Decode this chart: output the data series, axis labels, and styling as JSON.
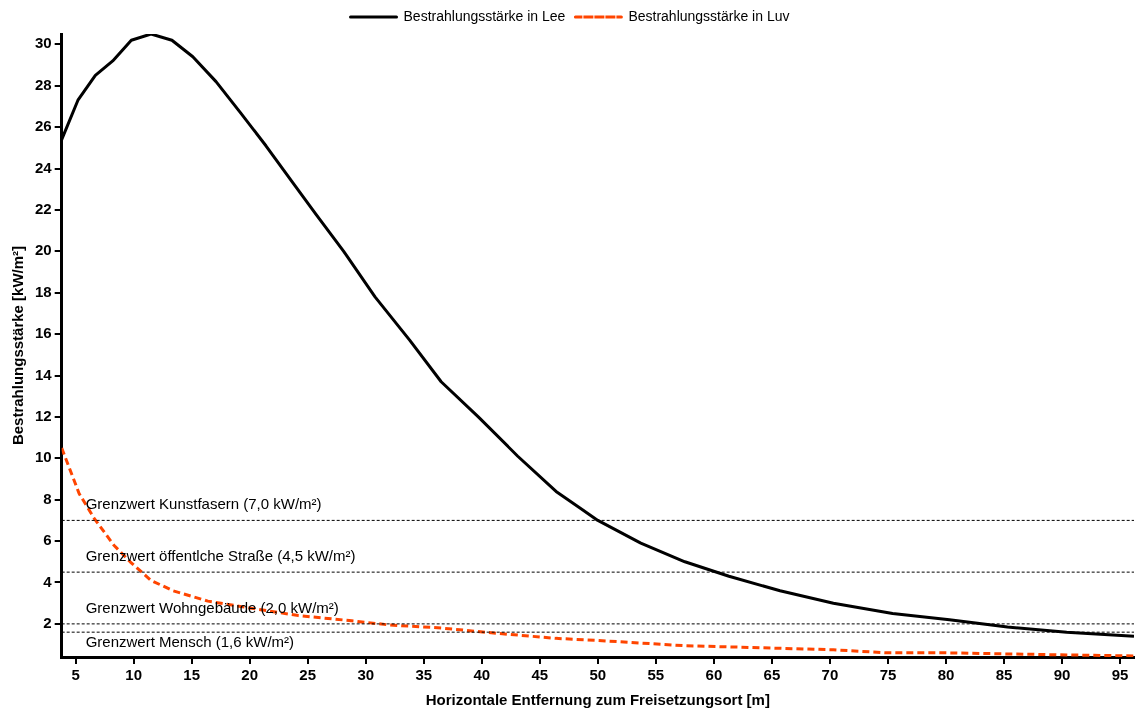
{
  "chart_data": {
    "type": "line",
    "xlabel": "Horizontale Entfernung zum Freisetzungsort [m]",
    "ylabel": "Bestrahlungsstärke [kW/m²]",
    "xlim": [
      3.8,
      96.2
    ],
    "ylim": [
      0.4,
      30.5
    ],
    "xticks": [
      5,
      10,
      15,
      20,
      25,
      30,
      35,
      40,
      45,
      50,
      55,
      60,
      65,
      70,
      75,
      80,
      85,
      90,
      95
    ],
    "yticks": [
      2,
      4,
      6,
      8,
      10,
      12,
      14,
      16,
      18,
      20,
      22,
      24,
      26,
      28,
      30
    ],
    "grid": false,
    "legend": "top",
    "marker": "none",
    "series": [
      {
        "name": "Bestrahlungsstärke in Lee",
        "color": "#000000",
        "line_style": "solid",
        "x": [
          3.8,
          5.2,
          6.7,
          8.2,
          9.8,
          11.5,
          13.3,
          15.1,
          17.1,
          19.2,
          21.4,
          23.6,
          25.7,
          28.1,
          30.8,
          33.8,
          36.5,
          39.7,
          43.1,
          46.4,
          50,
          53.7,
          57.5,
          61.3,
          65.7,
          70.3,
          75.4,
          80.3,
          85.3,
          90.4,
          96.2
        ],
        "values": [
          25.4,
          27.3,
          28.5,
          29.2,
          30.2,
          30.5,
          30.2,
          29.4,
          28.2,
          26.7,
          25.1,
          23.4,
          21.8,
          20.0,
          17.8,
          15.7,
          13.7,
          12.0,
          10.1,
          8.4,
          7.0,
          5.9,
          5.0,
          4.3,
          3.6,
          3.0,
          2.5,
          2.2,
          1.85,
          1.6,
          1.4
        ]
      },
      {
        "name": "Bestrahlungsstärke in Luv",
        "color": "#ff4500",
        "line_style": "dashed",
        "x": [
          3.8,
          5.3,
          6.6,
          8.3,
          9.7,
          11.5,
          13.4,
          16.4,
          20.2,
          24.2,
          28.8,
          32,
          36.5,
          41.2,
          46.4,
          50,
          57.3,
          70.3,
          75,
          80,
          90.4,
          96.2
        ],
        "values": [
          10.5,
          8.3,
          7.1,
          5.8,
          5.0,
          4.1,
          3.6,
          3.1,
          2.75,
          2.4,
          2.15,
          1.95,
          1.8,
          1.55,
          1.3,
          1.2,
          0.95,
          0.75,
          0.6,
          0.6,
          0.5,
          0.45
        ]
      }
    ],
    "ref_lines": [
      {
        "axis": "y",
        "value": 7.0,
        "label": "Grenzwert Kunstfasern (7,0 kW/m²)",
        "color": "#000000",
        "line_style": "dashed"
      },
      {
        "axis": "y",
        "value": 4.5,
        "label": "Grenzwert öffentlche Straße (4,5 kW/m²)",
        "color": "#000000",
        "line_style": "dashed"
      },
      {
        "axis": "y",
        "value": 2.0,
        "label": "Grenzwert Wohngebäude (2,0 kW/m²)",
        "color": "#000000",
        "line_style": "dashed"
      },
      {
        "axis": "y",
        "value": 1.6,
        "label": "Grenzwert Mensch (1,6 kW/m²)",
        "color": "#000000",
        "line_style": "dashed"
      }
    ]
  }
}
